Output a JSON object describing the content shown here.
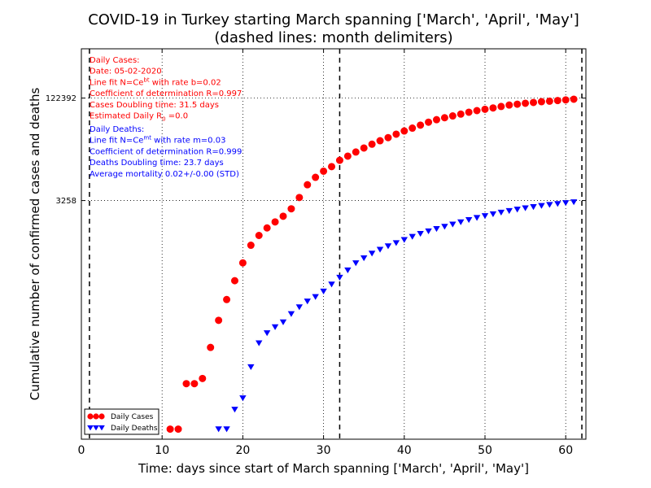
{
  "chart_data": {
    "type": "scatter",
    "title": "COVID-19 in Turkey starting March spanning ['March', 'April', 'May']",
    "subtitle": "(dashed lines: month delimiters)",
    "xlabel": "Time: days since start of March spanning ['March', 'April', 'May']",
    "ylabel": "Cumulative number of confirmed cases and deaths",
    "xlim": [
      0,
      62.5
    ],
    "y_scale": "log",
    "ylim": [
      0.7,
      700000
    ],
    "xticks": [
      0,
      10,
      20,
      30,
      40,
      50,
      60
    ],
    "xtick_labels": [
      "0",
      "10",
      "20",
      "30",
      "40",
      "50",
      "60"
    ],
    "yticks": [
      3258,
      122392
    ],
    "ytick_labels": [
      "3258",
      "122392"
    ],
    "month_delimiters": [
      1,
      32,
      62
    ],
    "grid": true,
    "legend": "bottom-left",
    "colors": {
      "cases": "#ff0000",
      "deaths": "#0000ff",
      "delimiter": "#000000"
    },
    "series": [
      {
        "name": "Daily Cases",
        "marker": "circle",
        "color": "#ff0000",
        "x": [
          11,
          12,
          13,
          14,
          15,
          16,
          17,
          18,
          19,
          20,
          21,
          22,
          23,
          24,
          25,
          26,
          27,
          28,
          29,
          30,
          31,
          32,
          33,
          34,
          35,
          36,
          37,
          38,
          39,
          40,
          41,
          42,
          43,
          44,
          45,
          46,
          47,
          48,
          49,
          50,
          51,
          52,
          53,
          54,
          55,
          56,
          57,
          58,
          59,
          60,
          61
        ],
        "values": [
          1,
          1,
          5,
          5,
          6,
          18,
          47,
          98,
          191,
          359,
          670,
          947,
          1236,
          1529,
          1872,
          2433,
          3629,
          5698,
          7402,
          9217,
          10827,
          13531,
          15679,
          18135,
          20921,
          23934,
          27069,
          30217,
          34109,
          38226,
          42282,
          47029,
          52167,
          56956,
          61049,
          65111,
          69392,
          74193,
          78546,
          82329,
          86306,
          90980,
          95591,
          98674,
          101790,
          104912,
          107773,
          109704,
          112261,
          114653,
          117589
        ]
      },
      {
        "name": "Daily Deaths",
        "marker": "triangle-down",
        "color": "#0000ff",
        "x": [
          17,
          18,
          19,
          20,
          21,
          22,
          23,
          24,
          25,
          26,
          27,
          28,
          29,
          30,
          31,
          32,
          33,
          34,
          35,
          36,
          37,
          38,
          39,
          40,
          41,
          42,
          43,
          44,
          45,
          46,
          47,
          48,
          49,
          50,
          51,
          52,
          53,
          54,
          55,
          56,
          57,
          58,
          59,
          60,
          61
        ],
        "values": [
          1,
          1,
          2,
          3,
          9,
          21,
          30,
          37,
          44,
          59,
          75,
          92,
          108,
          131,
          168,
          214,
          277,
          356,
          425,
          501,
          574,
          649,
          725,
          812,
          908,
          1006,
          1101,
          1198,
          1296,
          1403,
          1518,
          1643,
          1769,
          1890,
          2017,
          2140,
          2259,
          2376,
          2491,
          2600,
          2706,
          2805,
          2900,
          2992,
          3081
        ]
      }
    ],
    "annotations": {
      "cases": [
        "Daily Cases:",
        "Date: 05-02-2020",
        "Line fit N=Ce^{bt} with rate b=0.02",
        "Coefficient of determination R=0.997",
        "Cases Doubling time: 31.5 days",
        "Estimated Daily R_0 =0.0"
      ],
      "deaths": [
        "Daily Deaths:",
        "Line fit N=Ce^{mt} with rate m=0.03",
        "Coefficient of determination R=0.999",
        "Deaths Doubling time: 23.7 days",
        "Average mortality 0.02+/-0.00 (STD)"
      ]
    }
  }
}
